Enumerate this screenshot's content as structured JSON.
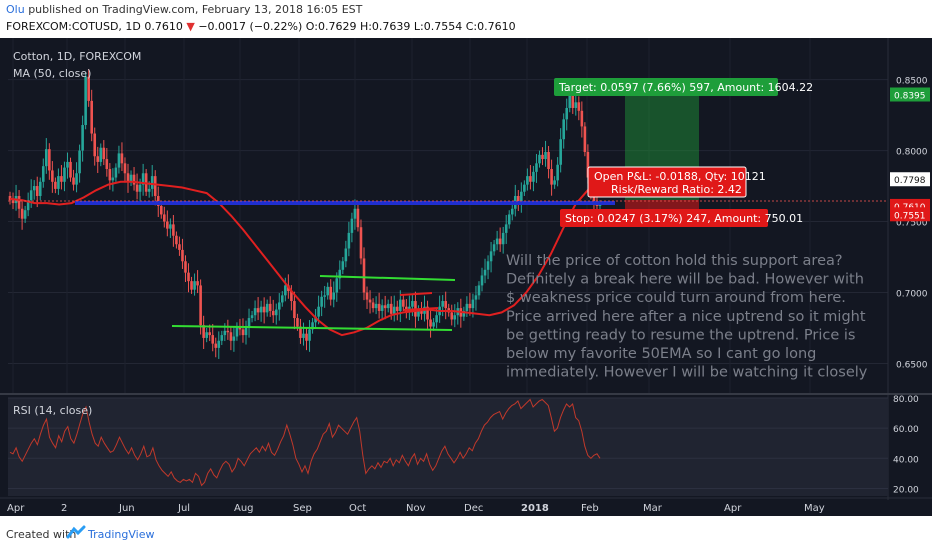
{
  "header": {
    "author": "Olu",
    "published": "published on TradingView.com, February 13, 2018 16:05 EST",
    "symbol_line": "FOREXCOM:COTUSD, 1D",
    "last": "0.7610",
    "change_arrow": "▼",
    "change": "−0.0017 (−0.22%)",
    "ohlc": "O:0.7629 H:0.7639 L:0.7554 C:0.7610"
  },
  "chart_title": "Cotton, 1D, FOREXCOM",
  "ma_label": "MA (50, close)",
  "rsi_label": "RSI (14, close)",
  "target_label": "Target: 0.0597 (7.66%) 597, Amount: 1604.22",
  "open_pl_label": "Open P&L: -0.0188, Qty: 10121",
  "rr_label": "Risk/Reward Ratio: 2.42",
  "stop_label": "Stop: 0.0247 (3.17%) 247, Amount: 750.01",
  "note_lines": [
    "Will the price of cotton hold this support area?",
    "Definitely a break here will be bad. However with",
    "$ weakness  price could turn around from here.",
    "Price arrived here after a nice uptrend so it might",
    "be getting ready to resume the uptrend. Price is",
    "below my favorite 50EMA so I cant go long",
    "immediately. However I will be watching it closely"
  ],
  "footer": {
    "created": "Created with",
    "brand": "TradingView"
  },
  "colors": {
    "background": "#131722",
    "up": "#26a69a",
    "down": "#ef5350",
    "ma": "#e02020",
    "support": "#1f2fd0",
    "channel": "#33dd33",
    "target": "#1e9e3a",
    "stop": "#e01818",
    "rsi": "#c0392b"
  },
  "chart_data": [
    {
      "type": "candlestick",
      "title": "Cotton, 1D, FOREXCOM",
      "x_ticks": [
        "Apr",
        "2",
        "Jun",
        "Jul",
        "Aug",
        "Sep",
        "Oct",
        "Nov",
        "Dec",
        "2018",
        "Feb",
        "Mar",
        "Apr",
        "May"
      ],
      "y_ticks": [
        0.65,
        0.7,
        0.75,
        0.8,
        0.85
      ],
      "ylim": [
        0.6285,
        0.8793
      ],
      "price_tags": [
        {
          "value": 0.8395,
          "kind": "target"
        },
        {
          "value": 0.7798,
          "kind": "neutral"
        },
        {
          "value": 0.761,
          "kind": "last"
        },
        {
          "value": 0.7551,
          "kind": "stop"
        }
      ],
      "close_series": [
        0.765,
        0.763,
        0.768,
        0.759,
        0.752,
        0.758,
        0.765,
        0.772,
        0.775,
        0.768,
        0.778,
        0.789,
        0.801,
        0.786,
        0.778,
        0.773,
        0.782,
        0.778,
        0.788,
        0.792,
        0.781,
        0.776,
        0.784,
        0.8,
        0.818,
        0.852,
        0.835,
        0.812,
        0.796,
        0.792,
        0.802,
        0.794,
        0.787,
        0.779,
        0.781,
        0.788,
        0.798,
        0.791,
        0.784,
        0.778,
        0.783,
        0.776,
        0.771,
        0.776,
        0.784,
        0.771,
        0.773,
        0.782,
        0.768,
        0.761,
        0.755,
        0.75,
        0.745,
        0.748,
        0.74,
        0.734,
        0.73,
        0.722,
        0.714,
        0.708,
        0.702,
        0.708,
        0.705,
        0.677,
        0.668,
        0.672,
        0.67,
        0.664,
        0.661,
        0.666,
        0.67,
        0.673,
        0.672,
        0.666,
        0.669,
        0.676,
        0.674,
        0.67,
        0.676,
        0.682,
        0.684,
        0.689,
        0.686,
        0.69,
        0.686,
        0.692,
        0.687,
        0.684,
        0.688,
        0.693,
        0.698,
        0.705,
        0.701,
        0.694,
        0.682,
        0.676,
        0.668,
        0.671,
        0.666,
        0.674,
        0.679,
        0.683,
        0.69,
        0.697,
        0.698,
        0.704,
        0.695,
        0.7,
        0.71,
        0.716,
        0.722,
        0.731,
        0.742,
        0.752,
        0.759,
        0.746,
        0.724,
        0.7,
        0.695,
        0.693,
        0.689,
        0.692,
        0.687,
        0.691,
        0.689,
        0.692,
        0.685,
        0.69,
        0.687,
        0.695,
        0.69,
        0.686,
        0.69,
        0.694,
        0.683,
        0.688,
        0.685,
        0.69,
        0.681,
        0.676,
        0.679,
        0.684,
        0.69,
        0.694,
        0.689,
        0.686,
        0.681,
        0.684,
        0.689,
        0.683,
        0.687,
        0.692,
        0.689,
        0.695,
        0.698,
        0.705,
        0.712,
        0.716,
        0.722,
        0.729,
        0.734,
        0.738,
        0.734,
        0.742,
        0.748,
        0.755,
        0.759,
        0.768,
        0.764,
        0.771,
        0.776,
        0.782,
        0.778,
        0.785,
        0.791,
        0.797,
        0.794,
        0.799,
        0.787,
        0.776,
        0.779,
        0.79,
        0.808,
        0.822,
        0.83,
        0.839,
        0.83,
        0.834,
        0.828,
        0.817,
        0.799,
        0.781,
        0.771,
        0.764,
        0.761,
        0.762
      ],
      "ma50_series": [
        0.766,
        0.765,
        0.763,
        0.763,
        0.762,
        0.763,
        0.767,
        0.772,
        0.776,
        0.778,
        0.778,
        0.777,
        0.776,
        0.775,
        0.774,
        0.772,
        0.77,
        0.763,
        0.754,
        0.744,
        0.733,
        0.722,
        0.711,
        0.7,
        0.69,
        0.681,
        0.674,
        0.67,
        0.672,
        0.675,
        0.68,
        0.684,
        0.686,
        0.687,
        0.688,
        0.687,
        0.687,
        0.686,
        0.685,
        0.684,
        0.686,
        0.691,
        0.7,
        0.712,
        0.727,
        0.745,
        0.762,
        0.772,
        0.778
      ],
      "support_line": 0.758,
      "channel_upper": 0.7,
      "channel_lower": 0.664
    },
    {
      "type": "line",
      "title": "RSI (14, close)",
      "y_ticks": [
        20,
        40,
        60,
        80
      ],
      "ylim": [
        15,
        80
      ],
      "values": [
        44,
        43,
        47,
        41,
        38,
        42,
        46,
        50,
        53,
        49,
        56,
        62,
        66,
        54,
        50,
        47,
        55,
        51,
        58,
        61,
        53,
        50,
        56,
        63,
        70,
        74,
        64,
        56,
        50,
        48,
        54,
        50,
        47,
        44,
        45,
        49,
        54,
        50,
        46,
        43,
        47,
        42,
        39,
        43,
        48,
        41,
        42,
        47,
        39,
        35,
        32,
        30,
        28,
        31,
        27,
        25,
        24,
        26,
        25,
        26,
        24,
        30,
        28,
        22,
        24,
        30,
        33,
        29,
        27,
        32,
        36,
        38,
        36,
        31,
        34,
        40,
        38,
        35,
        39,
        43,
        45,
        47,
        44,
        48,
        45,
        50,
        44,
        42,
        46,
        51,
        55,
        62,
        56,
        49,
        40,
        36,
        31,
        35,
        30,
        38,
        43,
        46,
        51,
        56,
        58,
        63,
        54,
        57,
        62,
        60,
        58,
        56,
        60,
        64,
        67,
        58,
        42,
        30,
        33,
        35,
        33,
        37,
        34,
        38,
        37,
        40,
        35,
        39,
        37,
        42,
        38,
        35,
        40,
        43,
        36,
        40,
        38,
        43,
        36,
        32,
        35,
        40,
        45,
        48,
        43,
        40,
        37,
        40,
        44,
        40,
        43,
        47,
        45,
        50,
        53,
        58,
        62,
        64,
        67,
        69,
        70,
        71,
        66,
        70,
        73,
        75,
        76,
        78,
        73,
        75,
        77,
        79,
        74,
        76,
        78,
        79,
        77,
        75,
        67,
        58,
        60,
        67,
        72,
        76,
        74,
        76,
        67,
        65,
        58,
        48,
        42,
        40,
        42,
        43,
        40
      ]
    }
  ]
}
